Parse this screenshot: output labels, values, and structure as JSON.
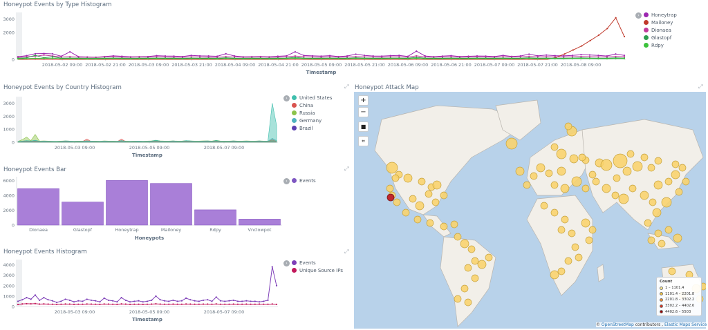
{
  "panels": {
    "type_histogram": {
      "title": "Honeypot Events by Type Histogram",
      "x_label": "Timestamp",
      "y_ticks": [
        "3000",
        "2000",
        "0"
      ],
      "x_ticks": [
        "2018-05-02 09:00",
        "2018-05-02 21:00",
        "2018-05-03 09:00",
        "2018-05-03 21:00",
        "2018-05-04 09:00",
        "2018-05-04 21:00",
        "2018-05-05 09:00",
        "2018-05-05 21:00",
        "2018-05-06 09:00",
        "2018-05-06 21:00",
        "2018-05-07 09:00",
        "2018-05-07 21:00",
        "2018-05-08 09:00"
      ],
      "legend": [
        {
          "label": "Honeytrap",
          "color": "#9c27b0"
        },
        {
          "label": "Mailoney",
          "color": "#c0392b"
        },
        {
          "label": "Dionaea",
          "color": "#c2399b"
        },
        {
          "label": "Glastopf",
          "color": "#2e9e4f"
        },
        {
          "label": "Rdpy",
          "color": "#3cc23c"
        }
      ]
    },
    "country_histogram": {
      "title": "Honeypot Events by Country Histogram",
      "x_label": "Timestamp",
      "y_ticks": [
        "3000",
        "2000",
        "1000",
        "0"
      ],
      "x_ticks": [
        "2018-05-03 09:00",
        "2018-05-05 09:00",
        "2018-05-07 09:00"
      ],
      "legend": [
        {
          "label": "United States",
          "color": "#3fbfad"
        },
        {
          "label": "China",
          "color": "#d9534f"
        },
        {
          "label": "Russia",
          "color": "#8bc34a"
        },
        {
          "label": "Germany",
          "color": "#4fb3bf"
        },
        {
          "label": "Brazil",
          "color": "#5b3fb0"
        }
      ]
    },
    "events_bar": {
      "title": "Honeypot Events Bar",
      "x_label": "Honeypots",
      "y_ticks": [
        "6000",
        "4000",
        "2000",
        "0"
      ],
      "legend": [
        {
          "label": "Events",
          "color": "#7e57c2"
        }
      ]
    },
    "events_histogram": {
      "title": "Honeypot Events Histogram",
      "x_label": "Timestamp",
      "y_ticks": [
        "4000",
        "3000",
        "2000",
        "1000",
        "0"
      ],
      "x_ticks": [
        "2018-05-03 09:00",
        "2018-05-05 09:00",
        "2018-05-07 09:00"
      ],
      "legend": [
        {
          "label": "Events",
          "color": "#7e3fb8"
        },
        {
          "label": "Unique Source IPs",
          "color": "#c2185b"
        }
      ]
    },
    "attack_map": {
      "title": "Honeypot Attack Map",
      "zoom_in": "+",
      "zoom_out": "−",
      "legend_title": "Count",
      "legend": [
        {
          "label": "1 – 1101.4",
          "color": "#fde68a"
        },
        {
          "label": "1101.4 – 2201.8",
          "color": "#f5c542"
        },
        {
          "label": "2201.8 – 3302.2",
          "color": "#f08a2c"
        },
        {
          "label": "3302.2 – 4402.6",
          "color": "#d7301f"
        },
        {
          "label": "4402.6 – 5503",
          "color": "#990000"
        }
      ],
      "attribution_prefix": "©",
      "attribution_link1": "OpenStreetMap",
      "attribution_mid": " contributors , ",
      "attribution_link2": "Elastic Maps Service"
    }
  },
  "chart_data": [
    {
      "type": "line",
      "title": "Honeypot Events by Type Histogram",
      "xlabel": "Timestamp",
      "ylim": [
        0,
        3500
      ],
      "series": [
        {
          "name": "Honeytrap",
          "values": [
            200,
            280,
            420,
            440,
            410,
            230,
            560,
            200,
            180,
            160,
            210,
            260,
            230,
            190,
            200,
            210,
            280,
            250,
            240,
            210,
            300,
            260,
            250,
            230,
            420,
            250,
            190,
            200,
            210,
            190,
            230,
            260,
            560,
            290,
            260,
            240,
            280,
            210,
            250,
            390,
            300,
            250,
            240,
            280,
            300,
            220,
            610,
            250,
            200,
            240,
            280,
            210,
            230,
            250,
            240,
            210,
            300,
            220,
            250,
            390,
            260,
            320,
            280,
            260,
            300,
            350,
            330,
            300,
            250,
            400,
            300
          ]
        },
        {
          "name": "Mailoney",
          "values": [
            0,
            0,
            0,
            0,
            0,
            0,
            0,
            0,
            0,
            0,
            0,
            0,
            0,
            0,
            0,
            0,
            0,
            0,
            0,
            0,
            0,
            0,
            0,
            0,
            0,
            0,
            0,
            0,
            0,
            0,
            0,
            0,
            0,
            0,
            0,
            0,
            0,
            0,
            0,
            0,
            0,
            0,
            0,
            0,
            0,
            0,
            0,
            0,
            0,
            0,
            0,
            0,
            0,
            0,
            0,
            0,
            0,
            0,
            0,
            0,
            0,
            0,
            0,
            150,
            400,
            700,
            1000,
            1400,
            1800,
            2300,
            3100,
            1700
          ]
        },
        {
          "name": "Dionaea",
          "values": [
            150,
            200,
            230,
            320,
            250,
            180,
            200,
            170,
            160,
            150,
            180,
            200,
            170,
            160,
            180,
            170,
            200,
            180,
            170,
            160,
            190,
            180,
            170,
            160,
            200,
            180,
            160,
            170,
            180,
            160,
            170,
            190,
            250,
            200,
            180,
            170,
            190,
            170,
            180,
            200,
            190,
            180,
            170,
            190,
            200,
            170,
            260,
            180,
            170,
            180,
            190,
            170,
            180,
            190,
            180,
            170,
            200,
            180,
            190,
            220,
            190,
            200,
            190,
            180,
            200,
            210,
            200,
            190,
            180,
            210,
            200
          ]
        },
        {
          "name": "Glastopf",
          "values": [
            80,
            120,
            300,
            120,
            200,
            90,
            100,
            90,
            80,
            80,
            90,
            100,
            90,
            80,
            90,
            90,
            100,
            90,
            90,
            80,
            100,
            90,
            90,
            80,
            120,
            90,
            80,
            90,
            90,
            80,
            90,
            100,
            150,
            100,
            90,
            90,
            100,
            90,
            90,
            120,
            100,
            90,
            90,
            100,
            100,
            90,
            150,
            90,
            90,
            90,
            100,
            90,
            90,
            100,
            90,
            90,
            100,
            90,
            90,
            120,
            90,
            100,
            90,
            90,
            100,
            110,
            100,
            90,
            90,
            110,
            100
          ]
        },
        {
          "name": "Rdpy",
          "values": [
            40,
            60,
            80,
            70,
            90,
            50,
            60,
            50,
            40,
            40,
            50,
            60,
            50,
            40,
            50,
            50,
            60,
            50,
            50,
            40,
            60,
            50,
            50,
            40,
            70,
            50,
            40,
            50,
            50,
            40,
            50,
            60,
            80,
            60,
            50,
            50,
            60,
            50,
            50,
            70,
            60,
            50,
            50,
            60,
            60,
            50,
            80,
            50,
            50,
            50,
            60,
            50,
            50,
            60,
            50,
            50,
            60,
            50,
            50,
            70,
            50,
            60,
            50,
            50,
            60,
            70,
            60,
            50,
            50,
            60,
            60
          ]
        }
      ]
    },
    {
      "type": "area",
      "title": "Honeypot Events by Country Histogram",
      "xlabel": "Timestamp",
      "ylim": [
        0,
        3500
      ],
      "series": [
        {
          "name": "United States",
          "values": [
            50,
            80,
            120,
            90,
            160,
            70,
            90,
            80,
            70,
            60,
            80,
            100,
            90,
            70,
            80,
            80,
            100,
            90,
            80,
            70,
            90,
            80,
            80,
            70,
            120,
            80,
            70,
            80,
            90,
            70,
            80,
            90,
            160,
            90,
            80,
            80,
            100,
            80,
            80,
            120,
            100,
            80,
            80,
            90,
            100,
            80,
            140,
            80,
            80,
            80,
            100,
            80,
            80,
            90,
            80,
            80,
            100,
            80,
            90,
            3000,
            1300
          ]
        },
        {
          "name": "China",
          "values": [
            40,
            60,
            80,
            70,
            90,
            50,
            60,
            50,
            40,
            40,
            50,
            60,
            50,
            40,
            50,
            60,
            250,
            50,
            50,
            40,
            60,
            50,
            50,
            40,
            250,
            50,
            40,
            50,
            50,
            40,
            50,
            60,
            80,
            60,
            50,
            50,
            60,
            50,
            50,
            70,
            60,
            50,
            50,
            60,
            60,
            50,
            80,
            50,
            50,
            50,
            60,
            50,
            50,
            60,
            50,
            50,
            60,
            50,
            50,
            200,
            60
          ]
        },
        {
          "name": "Russia",
          "values": [
            60,
            200,
            400,
            120,
            600,
            90,
            100,
            90,
            80,
            80,
            90,
            100,
            90,
            80,
            90,
            90,
            100,
            90,
            90,
            80,
            100,
            90,
            90,
            80,
            120,
            90,
            80,
            90,
            90,
            80,
            90,
            100,
            150,
            100,
            90,
            90,
            100,
            90,
            90,
            120,
            100,
            90,
            90,
            100,
            100,
            90,
            150,
            90,
            90,
            90,
            100,
            90,
            90,
            100,
            90,
            90,
            100,
            90,
            90,
            120,
            100
          ]
        },
        {
          "name": "Germany",
          "values": [
            60,
            90,
            120,
            100,
            140,
            80,
            90,
            80,
            70,
            70,
            80,
            90,
            80,
            70,
            80,
            80,
            90,
            80,
            80,
            70,
            90,
            80,
            80,
            70,
            100,
            80,
            70,
            80,
            80,
            70,
            80,
            90,
            120,
            90,
            80,
            80,
            90,
            80,
            80,
            100,
            90,
            80,
            80,
            90,
            90,
            80,
            120,
            80,
            80,
            80,
            90,
            80,
            80,
            90,
            80,
            80,
            90,
            80,
            80,
            300,
            120
          ]
        },
        {
          "name": "Brazil",
          "values": [
            30,
            40,
            50,
            45,
            60,
            35,
            40,
            35,
            30,
            30,
            35,
            40,
            35,
            30,
            35,
            35,
            40,
            35,
            35,
            30,
            40,
            35,
            35,
            30,
            45,
            35,
            30,
            35,
            35,
            30,
            35,
            40,
            50,
            40,
            35,
            35,
            40,
            35,
            35,
            45,
            40,
            35,
            35,
            40,
            40,
            35,
            50,
            35,
            35,
            35,
            40,
            35,
            35,
            40,
            35,
            35,
            40,
            35,
            35,
            50,
            40
          ]
        }
      ]
    },
    {
      "type": "bar",
      "title": "Honeypot Events Bar",
      "xlabel": "Honeypots",
      "categories": [
        "Dionaea",
        "Glastopf",
        "Honeytrap",
        "Mailoney",
        "Rdpy",
        "Vnclowpot"
      ],
      "series": [
        {
          "name": "Events",
          "values": [
            4900,
            3100,
            6000,
            5600,
            2050,
            800
          ]
        }
      ],
      "ylim": [
        0,
        6500
      ]
    },
    {
      "type": "line",
      "title": "Honeypot Events Histogram",
      "xlabel": "Timestamp",
      "ylim": [
        0,
        4500
      ],
      "series": [
        {
          "name": "Events",
          "values": [
            500,
            650,
            850,
            700,
            1100,
            600,
            850,
            650,
            550,
            400,
            500,
            700,
            600,
            450,
            550,
            500,
            700,
            600,
            550,
            450,
            800,
            600,
            550,
            450,
            850,
            600,
            450,
            500,
            550,
            450,
            500,
            600,
            1000,
            650,
            550,
            500,
            600,
            500,
            550,
            800,
            650,
            550,
            500,
            600,
            650,
            500,
            900,
            550,
            500,
            550,
            600,
            500,
            500,
            550,
            500,
            500,
            450,
            500,
            600,
            3800,
            2000
          ]
        },
        {
          "name": "Unique Source IPs",
          "values": [
            200,
            250,
            270,
            260,
            280,
            230,
            250,
            230,
            220,
            210,
            220,
            240,
            230,
            210,
            220,
            220,
            240,
            230,
            220,
            210,
            240,
            230,
            220,
            210,
            250,
            230,
            210,
            220,
            220,
            210,
            220,
            230,
            260,
            230,
            220,
            220,
            230,
            220,
            220,
            240,
            230,
            220,
            220,
            230,
            230,
            220,
            250,
            220,
            220,
            220,
            230,
            220,
            220,
            230,
            220,
            220,
            230,
            220,
            220,
            240,
            210
          ]
        }
      ]
    }
  ]
}
